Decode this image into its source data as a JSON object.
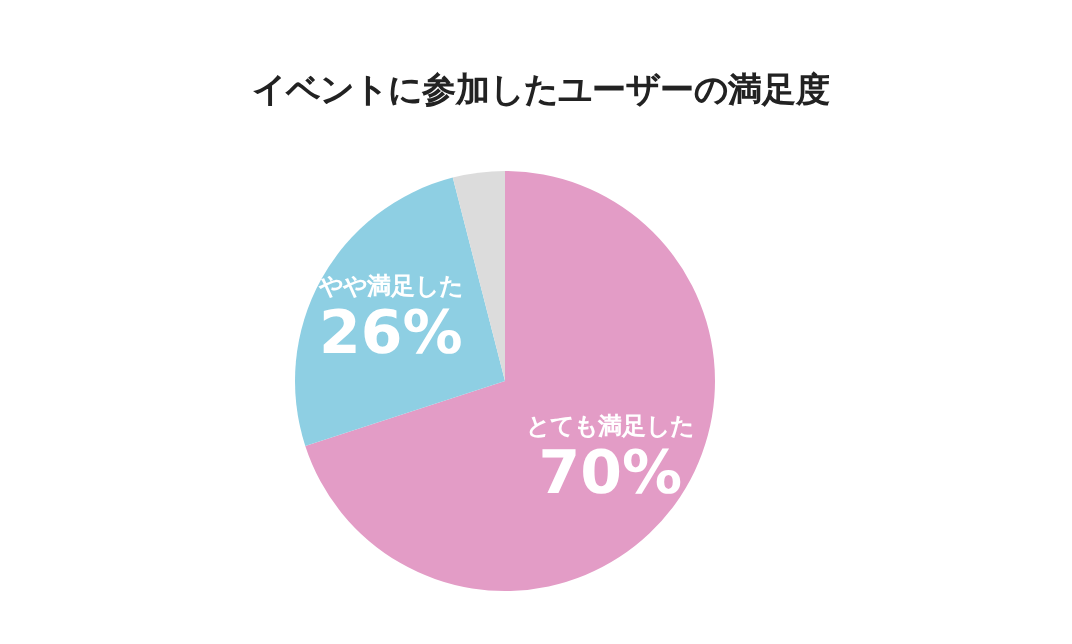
{
  "chart_data": {
    "type": "pie",
    "title": "イベントに参加したユーザーの満足度",
    "categories": [
      "とても満足した",
      "やや満足した",
      null
    ],
    "values": [
      70,
      26,
      4
    ],
    "colors": [
      "#e39cc6",
      "#8ecfe3",
      "#dcdcdc"
    ],
    "value_labels": [
      "70%",
      "26%",
      null
    ]
  }
}
